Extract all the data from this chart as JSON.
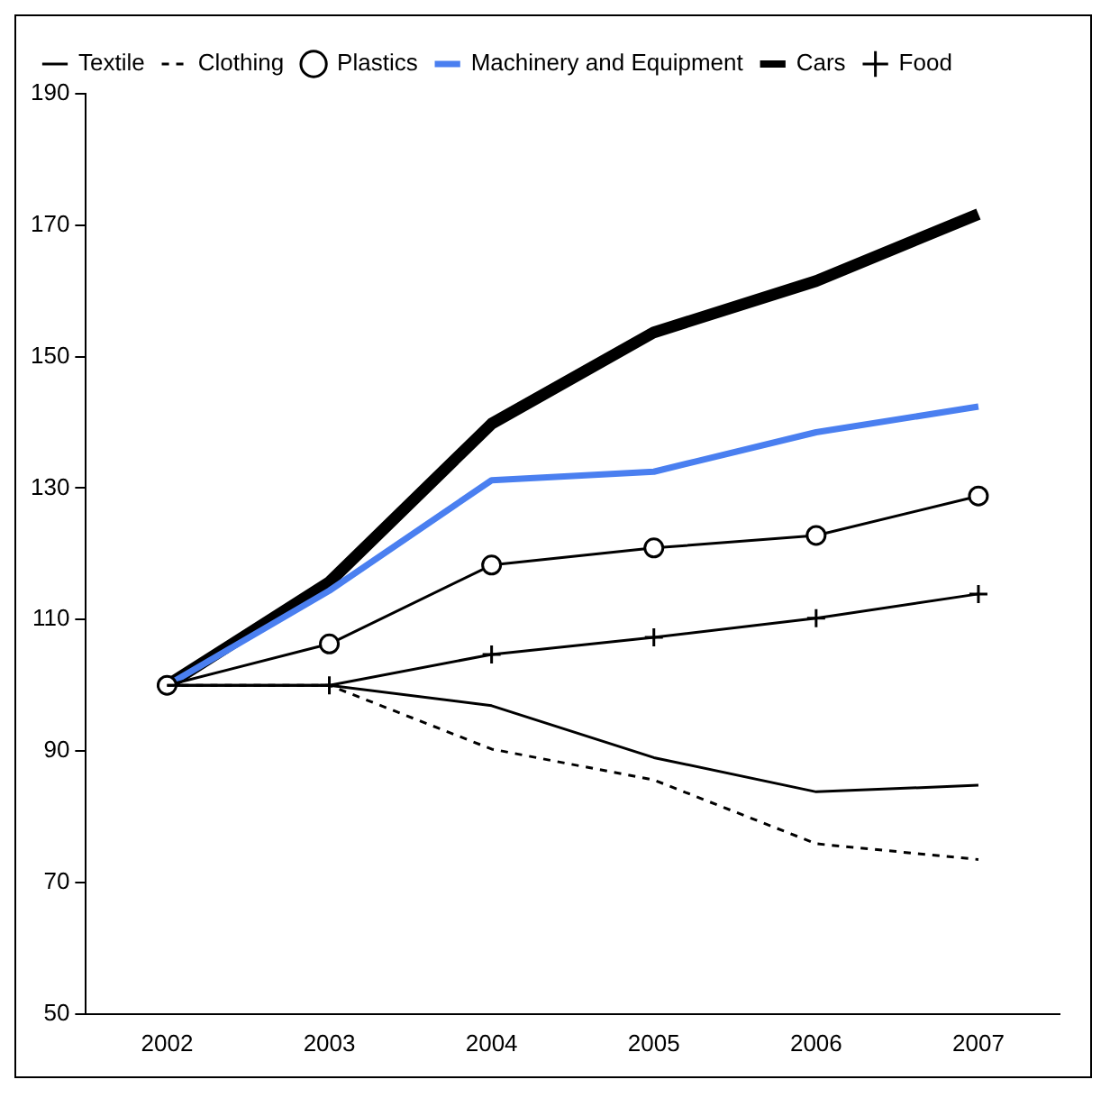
{
  "chart_data": {
    "type": "line",
    "categories": [
      "2002",
      "2003",
      "2004",
      "2005",
      "2006",
      "2007"
    ],
    "ylim": [
      50,
      190
    ],
    "yticks": [
      50,
      70,
      90,
      110,
      130,
      150,
      170,
      190
    ],
    "grid": false,
    "legend": "top left",
    "series": [
      {
        "name": "Textile",
        "color": "#000000",
        "marker": "none",
        "line_style": "solid",
        "values": [
          100,
          100,
          96.9,
          89,
          83.8,
          84.8
        ]
      },
      {
        "name": "Clothing",
        "color": "#000000",
        "marker": "none",
        "line_style": "dashed",
        "values": [
          100,
          100,
          90.3,
          85.6,
          75.9,
          73.5
        ]
      },
      {
        "name": "Plastics",
        "color": "#000000",
        "marker": "circle",
        "line_style": "solid",
        "values": [
          100,
          106.3,
          118.3,
          120.9,
          122.8,
          128.8
        ]
      },
      {
        "name": "Machinery and Equipment",
        "color": "#4a7ff0",
        "marker": "none",
        "line_style": "solid",
        "values": [
          100,
          114.4,
          131.2,
          132.5,
          138.5,
          142.4
        ]
      },
      {
        "name": "Cars",
        "color": "#000000",
        "marker": "none",
        "line_style": "solid",
        "values": [
          100,
          115.7,
          139.8,
          153.7,
          161.5,
          171.7
        ]
      },
      {
        "name": "Food",
        "color": "#000000",
        "marker": "cross",
        "line_style": "solid",
        "values": [
          100,
          100,
          104.7,
          107.3,
          110.2,
          113.9
        ]
      }
    ]
  }
}
